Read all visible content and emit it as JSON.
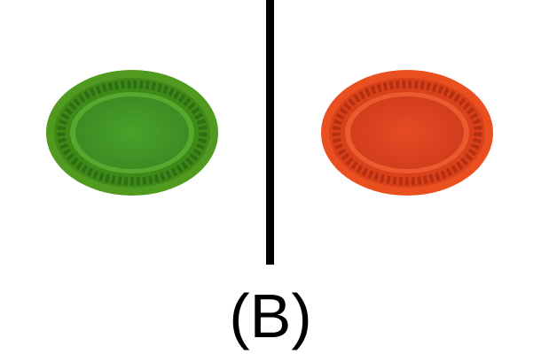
{
  "plates": [
    {
      "name": "green-plate",
      "colors": {
        "rim_outer": "#4f9a1f",
        "rim_band": "#3d8a18",
        "pattern": "#2f6e12",
        "center": "#4aa12a",
        "center_dark": "#3b8c22"
      }
    },
    {
      "name": "orange-plate",
      "colors": {
        "rim_outer": "#ea4f1f",
        "rim_band": "#d9411a",
        "pattern": "#b52f10",
        "center": "#e64b26",
        "center_dark": "#d23d1c"
      }
    }
  ],
  "divider": {
    "color": "#000000"
  },
  "caption": "(B)"
}
